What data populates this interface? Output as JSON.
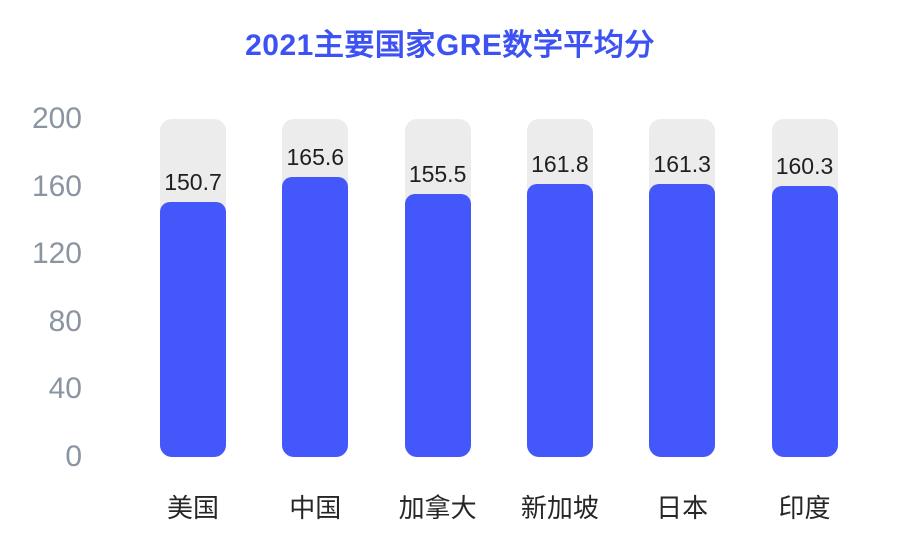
{
  "chart_data": {
    "type": "bar",
    "title": "2021主要国家GRE数学平均分",
    "categories": [
      "美国",
      "中国",
      "加拿大",
      "新加坡",
      "日本",
      "印度"
    ],
    "values": [
      150.7,
      165.6,
      155.5,
      161.8,
      161.3,
      160.3
    ],
    "value_labels": [
      "150.7",
      "165.6",
      "155.5",
      "161.8",
      "161.3",
      "160.3"
    ],
    "xlabel": "",
    "ylabel": "",
    "ylim": [
      0,
      200
    ],
    "yticks": [
      0,
      40,
      80,
      120,
      160,
      200
    ],
    "grid": false,
    "legend": false,
    "track_full_height": true,
    "colors": {
      "bar": "#4357FB",
      "track": "#ECECEC",
      "title": "#3C52F2",
      "axis_tick": "#8B95A2",
      "category_label": "#262626",
      "value_label": "#1F1F1F",
      "background": "#FFFFFF"
    }
  }
}
